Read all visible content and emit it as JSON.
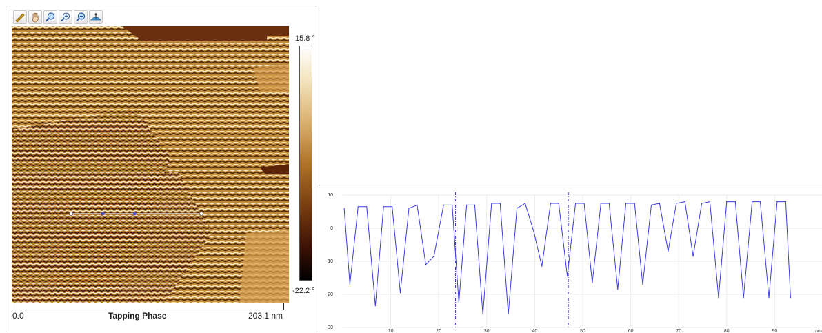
{
  "toolbar": {
    "tools": [
      {
        "name": "ruler-icon",
        "label": "Measure"
      },
      {
        "name": "hand-icon",
        "label": "Pan"
      },
      {
        "name": "zoom-icon",
        "label": "Zoom"
      },
      {
        "name": "zoom-in-icon",
        "label": "Zoom in"
      },
      {
        "name": "zoom-out-icon",
        "label": "Zoom out"
      },
      {
        "name": "level-icon",
        "label": "Level"
      }
    ]
  },
  "image": {
    "colorbar_max": "15.8 °",
    "colorbar_min": "-22.2 °",
    "colors": [
      "#ffffff",
      "#dcb270",
      "#b07428",
      "#7a3e10",
      "#000000"
    ],
    "scale_min": "0.0",
    "scale_max": "203.1 nm",
    "channel": "Tapping Phase"
  },
  "chart_data": {
    "type": "line",
    "title": "",
    "xlabel": "nm",
    "ylabel": "",
    "xlim": [
      0,
      100
    ],
    "ylim": [
      -30,
      10
    ],
    "x_ticks": [
      10,
      20,
      30,
      40,
      50,
      60,
      70,
      80,
      90
    ],
    "y_ticks": [
      10,
      0,
      -10,
      -20,
      -30
    ],
    "grid": true,
    "series_color": "#3b3bdb",
    "cursor_x": [
      23.5,
      47
    ],
    "series": [
      {
        "name": "",
        "x": [
          0.3,
          1.5,
          3.2,
          5.0,
          6.8,
          8.5,
          10.3,
          12.0,
          13.8,
          15.5,
          17.3,
          19.0,
          21.0,
          22.8,
          24.2,
          25.8,
          27.5,
          29.2,
          31.0,
          32.8,
          34.5,
          36.3,
          38.0,
          39.8,
          41.5,
          43.3,
          45.0,
          46.8,
          48.5,
          50.3,
          52.0,
          53.8,
          55.5,
          57.3,
          59.0,
          60.8,
          62.5,
          64.3,
          66.0,
          67.8,
          69.5,
          71.3,
          73.0,
          74.8,
          76.5,
          78.3,
          80.0,
          81.8,
          83.5,
          85.3,
          87.0,
          88.8,
          90.5,
          92.3,
          93.3
        ],
        "y": [
          6,
          -17,
          6.5,
          6.5,
          -23.5,
          6.5,
          6.5,
          -19.5,
          6,
          7,
          -11,
          -8.5,
          7,
          7,
          -22.5,
          7,
          7,
          -26,
          7.5,
          7.5,
          -26,
          6,
          7.5,
          -1,
          -11.5,
          7.5,
          7.5,
          -14.5,
          7.5,
          7.5,
          -16.5,
          7.5,
          7.5,
          -18.5,
          7.5,
          7.5,
          -17,
          7,
          7.5,
          -7,
          7.5,
          8,
          -8.5,
          7.5,
          8,
          -21,
          8,
          8,
          -21,
          8,
          8,
          -21,
          8,
          8,
          -21
        ]
      }
    ]
  }
}
